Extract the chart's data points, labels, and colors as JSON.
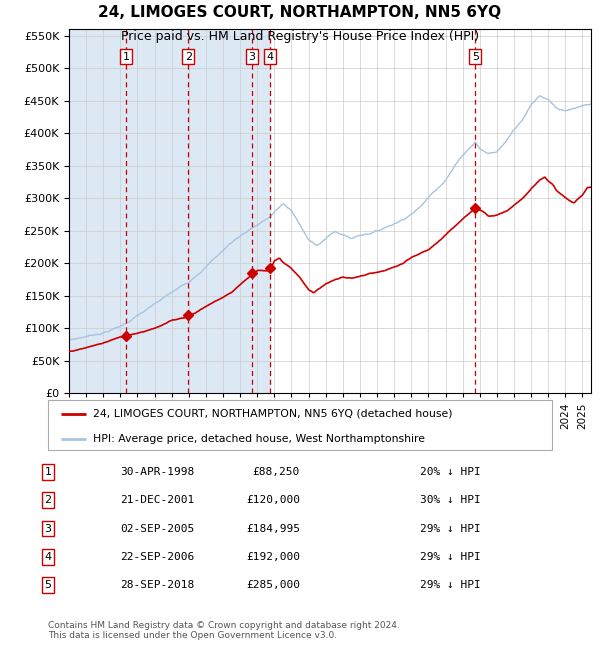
{
  "title": "24, LIMOGES COURT, NORTHAMPTON, NN5 6YQ",
  "subtitle": "Price paid vs. HM Land Registry's House Price Index (HPI)",
  "footer": "Contains HM Land Registry data © Crown copyright and database right 2024.\nThis data is licensed under the Open Government Licence v3.0.",
  "legend_line1": "24, LIMOGES COURT, NORTHAMPTON, NN5 6YQ (detached house)",
  "legend_line2": "HPI: Average price, detached house, West Northamptonshire",
  "transactions": [
    {
      "num": 1,
      "date": "1998-04-30",
      "price": 88250,
      "x_year": 1998.33
    },
    {
      "num": 2,
      "date": "2001-12-21",
      "price": 120000,
      "x_year": 2001.97
    },
    {
      "num": 3,
      "date": "2005-09-02",
      "price": 184995,
      "x_year": 2005.67
    },
    {
      "num": 4,
      "date": "2006-09-22",
      "price": 192000,
      "x_year": 2006.73
    },
    {
      "num": 5,
      "date": "2018-09-28",
      "price": 285000,
      "x_year": 2018.74
    }
  ],
  "table_rows": [
    {
      "num": 1,
      "date_str": "30-APR-1998",
      "price_str": "£88,250",
      "pct_str": "20% ↓ HPI"
    },
    {
      "num": 2,
      "date_str": "21-DEC-2001",
      "price_str": "£120,000",
      "pct_str": "30% ↓ HPI"
    },
    {
      "num": 3,
      "date_str": "02-SEP-2005",
      "price_str": "£184,995",
      "pct_str": "29% ↓ HPI"
    },
    {
      "num": 4,
      "date_str": "22-SEP-2006",
      "price_str": "£192,000",
      "pct_str": "29% ↓ HPI"
    },
    {
      "num": 5,
      "date_str": "28-SEP-2018",
      "price_str": "£285,000",
      "pct_str": "29% ↓ HPI"
    }
  ],
  "hpi_color": "#a8c4e0",
  "price_color": "#cc0000",
  "dashed_color": "#cc0000",
  "background_shaded": "#dce9f5",
  "ylim": [
    0,
    560000
  ],
  "yticks": [
    0,
    50000,
    100000,
    150000,
    200000,
    250000,
    300000,
    350000,
    400000,
    450000,
    500000,
    550000
  ],
  "xlim_start": 1995.0,
  "xlim_end": 2025.5,
  "hpi_anchors": [
    [
      1995.0,
      82000
    ],
    [
      1996.0,
      88000
    ],
    [
      1997.0,
      95000
    ],
    [
      1998.0,
      105000
    ],
    [
      1998.33,
      110000
    ],
    [
      1999.0,
      122000
    ],
    [
      2000.0,
      138000
    ],
    [
      2001.0,
      155000
    ],
    [
      2001.97,
      170000
    ],
    [
      2002.5,
      185000
    ],
    [
      2003.5,
      210000
    ],
    [
      2004.5,
      235000
    ],
    [
      2005.67,
      258000
    ],
    [
      2006.73,
      275000
    ],
    [
      2007.5,
      295000
    ],
    [
      2008.0,
      285000
    ],
    [
      2008.5,
      262000
    ],
    [
      2009.0,
      238000
    ],
    [
      2009.5,
      232000
    ],
    [
      2010.0,
      242000
    ],
    [
      2010.5,
      252000
    ],
    [
      2011.0,
      248000
    ],
    [
      2011.5,
      242000
    ],
    [
      2012.0,
      248000
    ],
    [
      2013.0,
      255000
    ],
    [
      2014.0,
      268000
    ],
    [
      2014.5,
      275000
    ],
    [
      2015.5,
      295000
    ],
    [
      2016.0,
      310000
    ],
    [
      2017.0,
      340000
    ],
    [
      2017.5,
      360000
    ],
    [
      2018.0,
      378000
    ],
    [
      2018.74,
      400000
    ],
    [
      2019.0,
      390000
    ],
    [
      2019.5,
      382000
    ],
    [
      2020.0,
      385000
    ],
    [
      2020.5,
      400000
    ],
    [
      2021.0,
      420000
    ],
    [
      2021.5,
      438000
    ],
    [
      2022.0,
      460000
    ],
    [
      2022.5,
      475000
    ],
    [
      2023.0,
      470000
    ],
    [
      2023.5,
      458000
    ],
    [
      2024.0,
      452000
    ],
    [
      2024.5,
      455000
    ],
    [
      2025.3,
      458000
    ]
  ],
  "price_anchors": [
    [
      1995.0,
      65000
    ],
    [
      1995.5,
      67000
    ],
    [
      1996.0,
      70000
    ],
    [
      1997.0,
      77000
    ],
    [
      1997.5,
      82000
    ],
    [
      1998.33,
      88250
    ],
    [
      1999.0,
      93000
    ],
    [
      1999.5,
      97000
    ],
    [
      2000.0,
      102000
    ],
    [
      2000.5,
      107000
    ],
    [
      2001.0,
      113000
    ],
    [
      2001.97,
      120000
    ],
    [
      2002.5,
      128000
    ],
    [
      2003.0,
      136000
    ],
    [
      2003.5,
      143000
    ],
    [
      2004.0,
      150000
    ],
    [
      2004.5,
      158000
    ],
    [
      2005.0,
      170000
    ],
    [
      2005.67,
      184995
    ],
    [
      2006.0,
      192000
    ],
    [
      2006.73,
      192000
    ],
    [
      2007.0,
      208000
    ],
    [
      2007.3,
      212000
    ],
    [
      2007.5,
      205000
    ],
    [
      2008.0,
      195000
    ],
    [
      2008.5,
      180000
    ],
    [
      2009.0,
      163000
    ],
    [
      2009.3,
      158000
    ],
    [
      2009.5,
      162000
    ],
    [
      2010.0,
      172000
    ],
    [
      2010.5,
      178000
    ],
    [
      2011.0,
      182000
    ],
    [
      2011.5,
      180000
    ],
    [
      2012.0,
      183000
    ],
    [
      2012.5,
      186000
    ],
    [
      2013.0,
      188000
    ],
    [
      2013.5,
      190000
    ],
    [
      2014.0,
      195000
    ],
    [
      2014.5,
      200000
    ],
    [
      2015.0,
      208000
    ],
    [
      2016.0,
      220000
    ],
    [
      2017.0,
      242000
    ],
    [
      2017.5,
      254000
    ],
    [
      2018.0,
      268000
    ],
    [
      2018.74,
      285000
    ],
    [
      2019.0,
      282000
    ],
    [
      2019.3,
      278000
    ],
    [
      2019.5,
      274000
    ],
    [
      2020.0,
      276000
    ],
    [
      2020.5,
      280000
    ],
    [
      2021.0,
      290000
    ],
    [
      2021.5,
      300000
    ],
    [
      2022.0,
      315000
    ],
    [
      2022.5,
      328000
    ],
    [
      2022.8,
      332000
    ],
    [
      2023.0,
      326000
    ],
    [
      2023.3,
      320000
    ],
    [
      2023.5,
      312000
    ],
    [
      2024.0,
      302000
    ],
    [
      2024.5,
      294000
    ],
    [
      2025.0,
      306000
    ],
    [
      2025.3,
      318000
    ]
  ]
}
